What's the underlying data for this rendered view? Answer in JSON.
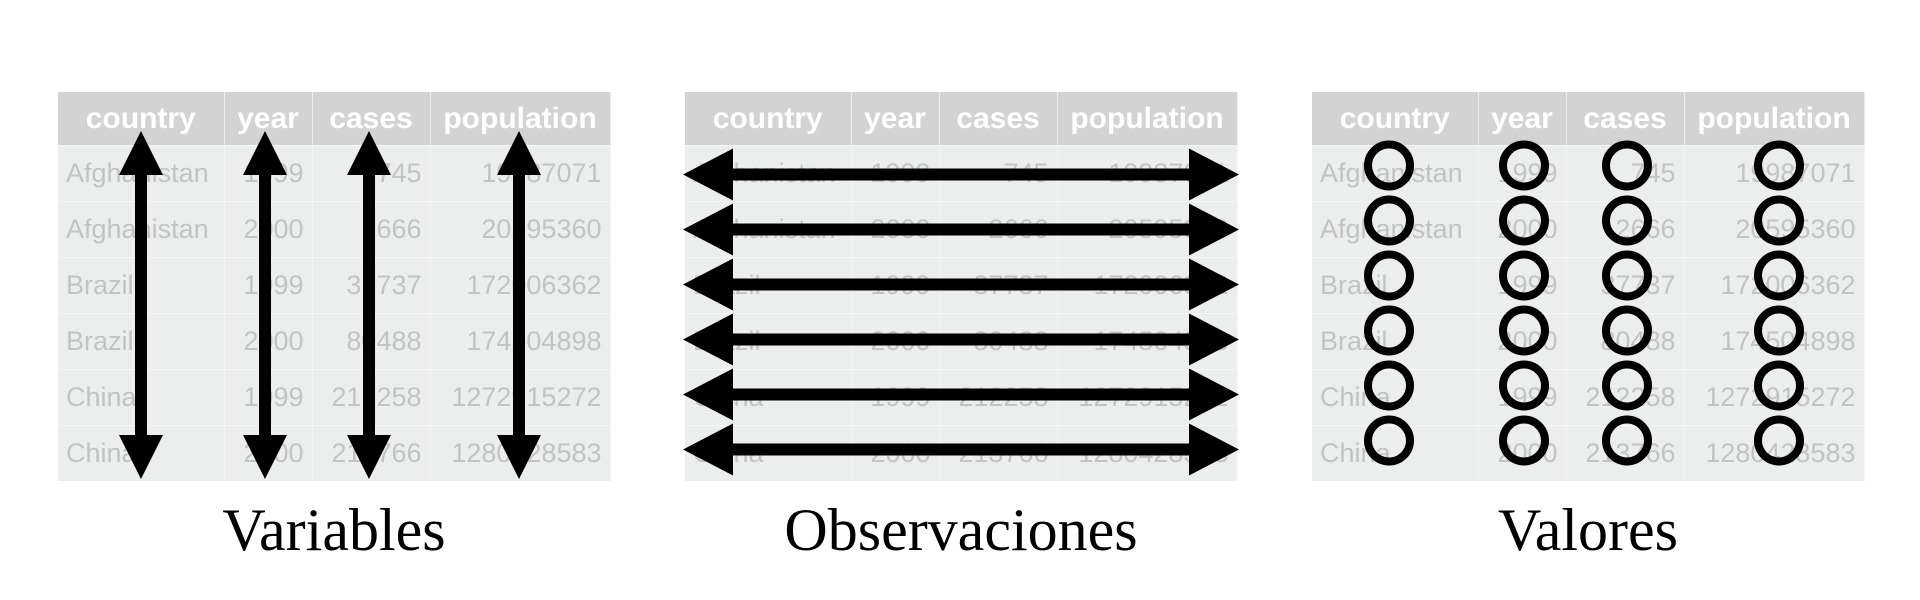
{
  "table": {
    "headers": [
      "country",
      "year",
      "cases",
      "population"
    ],
    "rows": [
      [
        "Afghanistan",
        "1999",
        "745",
        "19987071"
      ],
      [
        "Afghanistan",
        "2000",
        "2666",
        "20595360"
      ],
      [
        "Brazil",
        "1999",
        "37737",
        "172006362"
      ],
      [
        "Brazil",
        "2000",
        "80488",
        "174504898"
      ],
      [
        "China",
        "1999",
        "212258",
        "1272915272"
      ],
      [
        "China",
        "2000",
        "213766",
        "1280428583"
      ]
    ]
  },
  "panels": [
    {
      "id": "variables",
      "caption": "Variables",
      "mark": "vertical-double-arrow"
    },
    {
      "id": "observations",
      "caption": "Observaciones",
      "mark": "horizontal-double-arrow"
    },
    {
      "id": "values",
      "caption": "Valores",
      "mark": "circle"
    }
  ],
  "colors": {
    "header_bg": "#d3d3d3",
    "header_text": "#ffffff",
    "cell_bg": "#eceeed",
    "cell_text": "#c2c4c3",
    "mark": "#000000"
  }
}
